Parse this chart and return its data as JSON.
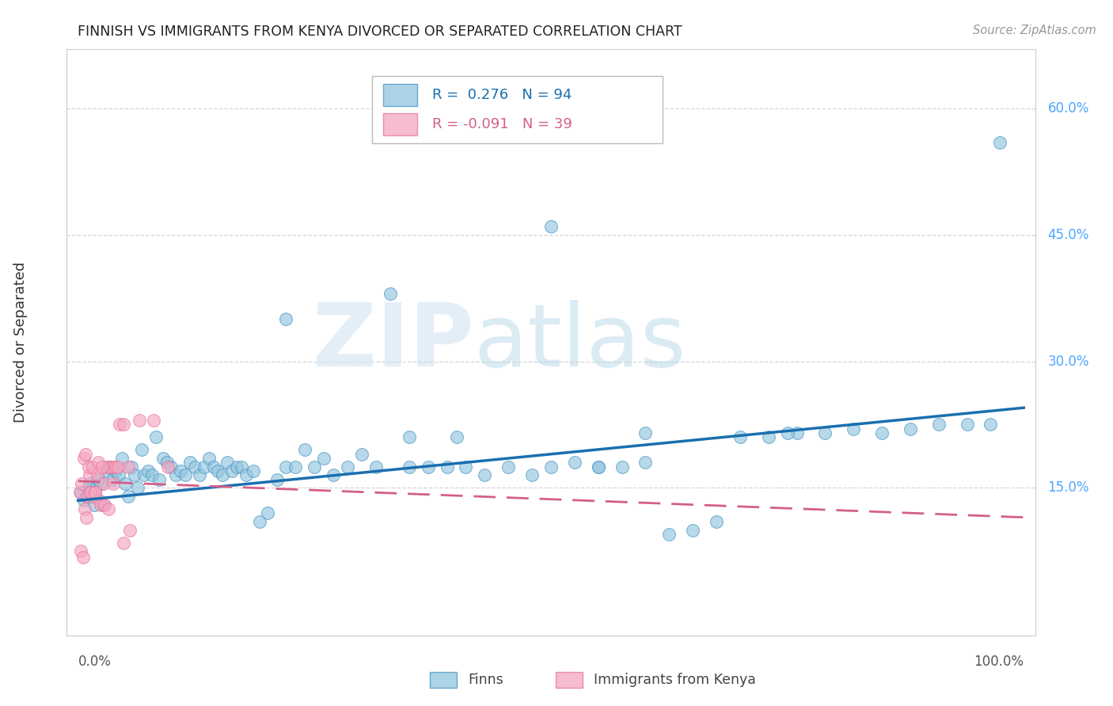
{
  "title": "FINNISH VS IMMIGRANTS FROM KENYA DIVORCED OR SEPARATED CORRELATION CHART",
  "source": "Source: ZipAtlas.com",
  "ylabel": "Divorced or Separated",
  "color_finn": "#92c5de",
  "color_kenya": "#f4a6c0",
  "color_finn_edge": "#4393c3",
  "color_kenya_edge": "#e8729a",
  "color_finn_line": "#1a6faf",
  "color_kenya_line": "#d45f8a",
  "watermark_zip": "ZIP",
  "watermark_atlas": "atlas",
  "background_color": "#ffffff",
  "grid_color": "#cccccc",
  "ytick_positions": [
    0.15,
    0.3,
    0.45,
    0.6
  ],
  "ytick_labels": [
    "15.0%",
    "30.0%",
    "45.0%",
    "60.0%"
  ],
  "finn_x": [
    0.003,
    0.006,
    0.009,
    0.011,
    0.013,
    0.015,
    0.017,
    0.019,
    0.021,
    0.024,
    0.027,
    0.03,
    0.033,
    0.036,
    0.04,
    0.043,
    0.046,
    0.05,
    0.053,
    0.056,
    0.06,
    0.063,
    0.067,
    0.07,
    0.074,
    0.078,
    0.082,
    0.086,
    0.09,
    0.094,
    0.098,
    0.103,
    0.108,
    0.113,
    0.118,
    0.123,
    0.128,
    0.133,
    0.138,
    0.143,
    0.148,
    0.153,
    0.158,
    0.163,
    0.168,
    0.173,
    0.178,
    0.185,
    0.192,
    0.2,
    0.21,
    0.22,
    0.23,
    0.24,
    0.25,
    0.26,
    0.27,
    0.285,
    0.3,
    0.315,
    0.33,
    0.35,
    0.37,
    0.39,
    0.41,
    0.43,
    0.455,
    0.48,
    0.5,
    0.525,
    0.55,
    0.575,
    0.6,
    0.625,
    0.65,
    0.675,
    0.7,
    0.73,
    0.76,
    0.79,
    0.82,
    0.85,
    0.88,
    0.91,
    0.94,
    0.965,
    0.5,
    0.22,
    0.6,
    0.75,
    0.4,
    0.35,
    0.55,
    0.975
  ],
  "finn_y": [
    0.145,
    0.135,
    0.14,
    0.15,
    0.155,
    0.14,
    0.13,
    0.15,
    0.16,
    0.155,
    0.13,
    0.17,
    0.175,
    0.16,
    0.17,
    0.165,
    0.185,
    0.155,
    0.14,
    0.175,
    0.165,
    0.15,
    0.195,
    0.165,
    0.17,
    0.165,
    0.21,
    0.16,
    0.185,
    0.18,
    0.175,
    0.165,
    0.17,
    0.165,
    0.18,
    0.175,
    0.165,
    0.175,
    0.185,
    0.175,
    0.17,
    0.165,
    0.18,
    0.17,
    0.175,
    0.175,
    0.165,
    0.17,
    0.11,
    0.12,
    0.16,
    0.175,
    0.175,
    0.195,
    0.175,
    0.185,
    0.165,
    0.175,
    0.19,
    0.175,
    0.38,
    0.175,
    0.175,
    0.175,
    0.175,
    0.165,
    0.175,
    0.165,
    0.175,
    0.18,
    0.175,
    0.175,
    0.18,
    0.095,
    0.1,
    0.11,
    0.21,
    0.21,
    0.215,
    0.215,
    0.22,
    0.215,
    0.22,
    0.225,
    0.225,
    0.225,
    0.46,
    0.35,
    0.215,
    0.215,
    0.21,
    0.21,
    0.175,
    0.56
  ],
  "kenya_x": [
    0.002,
    0.004,
    0.006,
    0.008,
    0.01,
    0.012,
    0.014,
    0.016,
    0.018,
    0.02,
    0.022,
    0.024,
    0.027,
    0.03,
    0.033,
    0.036,
    0.04,
    0.044,
    0.048,
    0.053,
    0.003,
    0.005,
    0.007,
    0.009,
    0.011,
    0.013,
    0.015,
    0.018,
    0.021,
    0.025,
    0.028,
    0.032,
    0.037,
    0.042,
    0.048,
    0.055,
    0.065,
    0.08,
    0.095
  ],
  "kenya_y": [
    0.145,
    0.155,
    0.185,
    0.19,
    0.14,
    0.165,
    0.145,
    0.14,
    0.145,
    0.165,
    0.135,
    0.13,
    0.155,
    0.175,
    0.175,
    0.175,
    0.175,
    0.225,
    0.225,
    0.175,
    0.075,
    0.068,
    0.125,
    0.115,
    0.175,
    0.145,
    0.175,
    0.145,
    0.18,
    0.175,
    0.13,
    0.125,
    0.155,
    0.175,
    0.085,
    0.1,
    0.23,
    0.23,
    0.175
  ]
}
